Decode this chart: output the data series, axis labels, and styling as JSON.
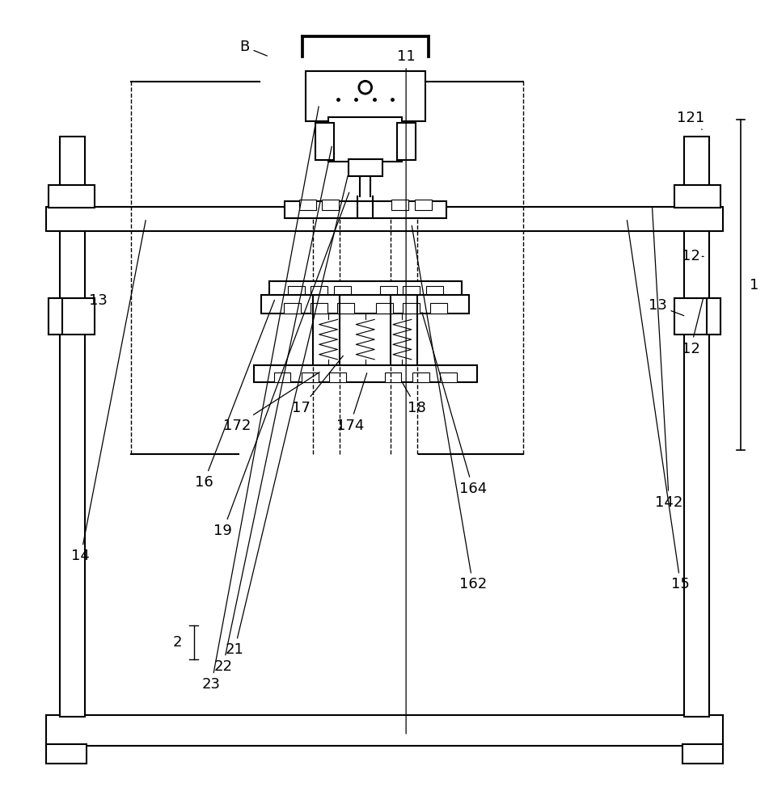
{
  "bg_color": "#ffffff",
  "line_color": "#000000",
  "line_width": 1.5,
  "thin_line": 0.8
}
